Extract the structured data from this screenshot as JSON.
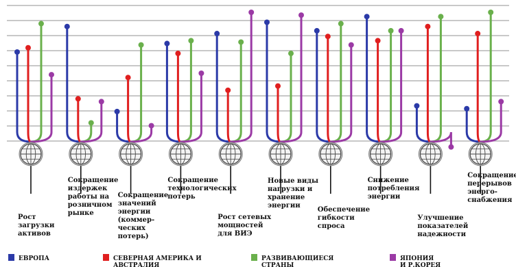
{
  "chart_data": {
    "type": "lollipop",
    "ylim": [
      0,
      100
    ],
    "grid": true,
    "legend_placement": "bottom",
    "series": [
      {
        "name": "ЕВРОПА",
        "color": "#2b3aa8"
      },
      {
        "name": "СЕВЕРНАЯ АМЕРИКА И АВСТРАЛИЯ",
        "color": "#e01f1f"
      },
      {
        "name": "РАЗВИВАЮЩИЕСЯ СТРАНЫ",
        "color": "#6ab04c"
      },
      {
        "name": "ЯПОНИЯ И Р.КОРЕЯ",
        "color": "#9b3aa5"
      }
    ],
    "categories": [
      {
        "label": [
          "Рост",
          "загрузки",
          "активов"
        ],
        "values": [
          72,
          75,
          92,
          56
        ]
      },
      {
        "label": [
          "Сокращение",
          "издержек",
          "работы на",
          "розничном",
          "рынке"
        ],
        "values": [
          90,
          39,
          22,
          37
        ]
      },
      {
        "label": [
          "Сокращение",
          "значений",
          "энергии",
          "(коммер-",
          "ческих",
          "потерь)"
        ],
        "values": [
          30,
          54,
          77,
          20
        ]
      },
      {
        "label": [
          "Сокращение",
          "технологических",
          "потерь"
        ],
        "values": [
          78,
          71,
          80,
          57
        ]
      },
      {
        "label": [
          "Рост сетевых",
          "мощностей",
          "для ВИЭ"
        ],
        "values": [
          85,
          45,
          79,
          100
        ]
      },
      {
        "label": [
          "Новые виды",
          "нагрузки и",
          "хранение",
          "энергии"
        ],
        "values": [
          93,
          48,
          71,
          98
        ]
      },
      {
        "label": [
          "Обеспечение",
          "гибкости",
          "спроса"
        ],
        "values": [
          87,
          83,
          92,
          77
        ]
      },
      {
        "label": [
          "Снижение",
          "потребления",
          "энергии"
        ],
        "values": [
          97,
          80,
          87,
          87
        ]
      },
      {
        "label": [
          "Улучшение",
          "показателей",
          "надежности"
        ],
        "values": [
          34,
          90,
          97,
          5
        ]
      },
      {
        "label": [
          "Сокращение",
          "перерывов",
          "энерго-",
          "снабжения"
        ],
        "values": [
          32,
          85,
          100,
          37
        ]
      }
    ]
  }
}
